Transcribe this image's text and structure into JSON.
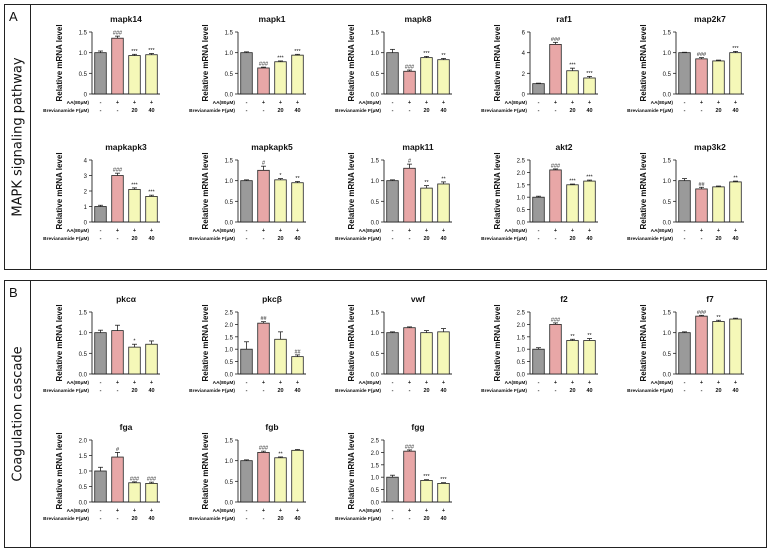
{
  "panels": [
    {
      "letter": "A",
      "title": "MAPK signaling pathway"
    },
    {
      "letter": "B",
      "title": "Coagulation cascade"
    }
  ],
  "colors": {
    "control": "#9a9a9a",
    "model": "#e8a7a7",
    "treated": "#f5f8b8",
    "edge": "#222222"
  },
  "shared_axis": {
    "ylabel": "Relative mRNA level",
    "row_labels": [
      "AA(80μM)",
      "Brevianamide F(μM)"
    ],
    "aa_marks": [
      "-",
      "+",
      "+",
      "+"
    ],
    "dose_marks": [
      "-",
      "-",
      "20",
      "40"
    ]
  },
  "chart_data": [
    {
      "type": "bar",
      "title": "mapk14",
      "ylabel": "Relative mRNA level",
      "categories": [
        "Control",
        "AA",
        "AA+20",
        "AA+40"
      ],
      "values": [
        1.0,
        1.35,
        0.93,
        0.95
      ],
      "errors": [
        0.04,
        0.05,
        0.03,
        0.03
      ],
      "sig": [
        "",
        "###",
        "***",
        "***"
      ],
      "ylim": [
        0,
        1.5
      ],
      "ticks": [
        "0",
        "0.5",
        "1.0",
        "1.5"
      ]
    },
    {
      "type": "bar",
      "title": "mapk1",
      "ylabel": "Relative mRNA level",
      "categories": [
        "Control",
        "AA",
        "AA+20",
        "AA+40"
      ],
      "values": [
        1.0,
        0.63,
        0.78,
        0.94
      ],
      "errors": [
        0.02,
        0.02,
        0.02,
        0.02
      ],
      "sig": [
        "",
        "###",
        "***",
        "***"
      ],
      "ylim": [
        0,
        1.5
      ],
      "ticks": [
        "0.0",
        "0.5",
        "1.0",
        "1.5"
      ]
    },
    {
      "type": "bar",
      "title": "mapk8",
      "ylabel": "Relative mRNA level",
      "categories": [
        "Control",
        "AA",
        "AA+20",
        "AA+40"
      ],
      "values": [
        1.0,
        0.55,
        0.88,
        0.83
      ],
      "errors": [
        0.08,
        0.03,
        0.03,
        0.03
      ],
      "sig": [
        "",
        "###",
        "***",
        "**"
      ],
      "ylim": [
        0,
        1.5
      ],
      "ticks": [
        "0.0",
        "0.5",
        "1.0",
        "1.5"
      ]
    },
    {
      "type": "bar",
      "title": "raf1",
      "ylabel": "Relative mRNA level",
      "categories": [
        "Control",
        "AA",
        "AA+20",
        "AA+40"
      ],
      "values": [
        1.0,
        4.8,
        2.25,
        1.55
      ],
      "errors": [
        0.05,
        0.2,
        0.25,
        0.15
      ],
      "sig": [
        "",
        "###",
        "***",
        "***"
      ],
      "ylim": [
        0,
        6
      ],
      "ticks": [
        "0",
        "2",
        "4",
        "6"
      ]
    },
    {
      "type": "bar",
      "title": "map2k7",
      "ylabel": "Relative mRNA level",
      "categories": [
        "Control",
        "AA",
        "AA+20",
        "AA+40"
      ],
      "values": [
        1.0,
        0.85,
        0.8,
        1.0
      ],
      "errors": [
        0.01,
        0.03,
        0.02,
        0.03
      ],
      "sig": [
        "",
        "###",
        "",
        "***"
      ],
      "ylim": [
        0,
        1.5
      ],
      "ticks": [
        "0.0",
        "0.5",
        "1.0",
        "1.5"
      ]
    },
    {
      "type": "bar",
      "title": "mapkapk3",
      "ylabel": "Relative mRNA level",
      "categories": [
        "Control",
        "AA",
        "AA+20",
        "AA+40"
      ],
      "values": [
        1.0,
        3.0,
        2.1,
        1.65
      ],
      "errors": [
        0.08,
        0.15,
        0.1,
        0.08
      ],
      "sig": [
        "",
        "###",
        "***",
        "***"
      ],
      "ylim": [
        0,
        4
      ],
      "ticks": [
        "0",
        "1",
        "2",
        "3",
        "4"
      ]
    },
    {
      "type": "bar",
      "title": "mapkapk5",
      "ylabel": "Relative mRNA level",
      "categories": [
        "Control",
        "AA",
        "AA+20",
        "AA+40"
      ],
      "values": [
        1.0,
        1.25,
        1.02,
        0.95
      ],
      "errors": [
        0.02,
        0.1,
        0.03,
        0.03
      ],
      "sig": [
        "",
        "#",
        "*",
        "**"
      ],
      "ylim": [
        0,
        1.5
      ],
      "ticks": [
        "0.0",
        "0.5",
        "1.0",
        "1.5"
      ]
    },
    {
      "type": "bar",
      "title": "mapk11",
      "ylabel": "Relative mRNA level",
      "categories": [
        "Control",
        "AA",
        "AA+20",
        "AA+40"
      ],
      "values": [
        1.0,
        1.3,
        0.82,
        0.92
      ],
      "errors": [
        0.02,
        0.1,
        0.06,
        0.05
      ],
      "sig": [
        "",
        "#",
        "**",
        "**"
      ],
      "ylim": [
        0,
        1.5
      ],
      "ticks": [
        "0.0",
        "0.5",
        "1.0",
        "1.5"
      ]
    },
    {
      "type": "bar",
      "title": "akt2",
      "ylabel": "Relative mRNA level",
      "categories": [
        "Control",
        "AA",
        "AA+20",
        "AA+40"
      ],
      "values": [
        1.0,
        2.1,
        1.5,
        1.65
      ],
      "errors": [
        0.04,
        0.04,
        0.03,
        0.04
      ],
      "sig": [
        "",
        "###",
        "***",
        "***"
      ],
      "ylim": [
        0,
        2.5
      ],
      "ticks": [
        "0.0",
        "0.5",
        "1.0",
        "1.5",
        "2.0",
        "2.5"
      ]
    },
    {
      "type": "bar",
      "title": "map3k2",
      "ylabel": "Relative mRNA level",
      "categories": [
        "Control",
        "AA",
        "AA+20",
        "AA+40"
      ],
      "values": [
        1.0,
        0.8,
        0.85,
        0.97
      ],
      "errors": [
        0.05,
        0.04,
        0.02,
        0.02
      ],
      "sig": [
        "",
        "##",
        "",
        "**"
      ],
      "ylim": [
        0,
        1.5
      ],
      "ticks": [
        "0.0",
        "0.5",
        "1.0",
        "1.5"
      ]
    },
    {
      "type": "bar",
      "title": "pkcα",
      "ylabel": "Relative mRNA level",
      "categories": [
        "Control",
        "AA",
        "AA+20",
        "AA+40"
      ],
      "values": [
        1.0,
        1.05,
        0.65,
        0.72
      ],
      "errors": [
        0.06,
        0.13,
        0.07,
        0.08
      ],
      "sig": [
        "",
        "",
        "*",
        ""
      ],
      "ylim": [
        0,
        1.5
      ],
      "ticks": [
        "0.0",
        "0.5",
        "1.0",
        "1.5"
      ]
    },
    {
      "type": "bar",
      "title": "pkcβ",
      "ylabel": "Relative mRNA level",
      "categories": [
        "Control",
        "AA",
        "AA+20",
        "AA+40"
      ],
      "values": [
        1.0,
        2.05,
        1.4,
        0.7
      ],
      "errors": [
        0.3,
        0.06,
        0.3,
        0.07
      ],
      "sig": [
        "",
        "##",
        "",
        "##"
      ],
      "ylim": [
        0,
        2.5
      ],
      "ticks": [
        "0.0",
        "0.5",
        "1.0",
        "1.5",
        "2.0",
        "2.5"
      ]
    },
    {
      "type": "bar",
      "title": "vwf",
      "ylabel": "Relative mRNA level",
      "categories": [
        "Control",
        "AA",
        "AA+20",
        "AA+40"
      ],
      "values": [
        1.0,
        1.12,
        1.0,
        1.02
      ],
      "errors": [
        0.02,
        0.02,
        0.05,
        0.08
      ],
      "sig": [
        "",
        "",
        "",
        ""
      ],
      "ylim": [
        0,
        1.5
      ],
      "ticks": [
        "0.0",
        "0.5",
        "1.0",
        "1.5"
      ]
    },
    {
      "type": "bar",
      "title": "f2",
      "ylabel": "Relative mRNA level",
      "categories": [
        "Control",
        "AA",
        "AA+20",
        "AA+40"
      ],
      "values": [
        1.0,
        2.0,
        1.35,
        1.35
      ],
      "errors": [
        0.06,
        0.06,
        0.05,
        0.08
      ],
      "sig": [
        "",
        "###",
        "**",
        "**"
      ],
      "ylim": [
        0,
        2.5
      ],
      "ticks": [
        "0.0",
        "0.5",
        "1.0",
        "1.5",
        "2.0",
        "2.5"
      ]
    },
    {
      "type": "bar",
      "title": "f7",
      "ylabel": "Relative mRNA level",
      "categories": [
        "Control",
        "AA",
        "AA+20",
        "AA+40"
      ],
      "values": [
        1.0,
        1.4,
        1.27,
        1.33
      ],
      "errors": [
        0.02,
        0.02,
        0.03,
        0.02
      ],
      "sig": [
        "",
        "###",
        "**",
        ""
      ],
      "ylim": [
        0,
        1.5
      ],
      "ticks": [
        "0.0",
        "0.5",
        "1.0",
        "1.5"
      ]
    },
    {
      "type": "bar",
      "title": "fga",
      "ylabel": "Relative mRNA level",
      "categories": [
        "Control",
        "AA",
        "AA+20",
        "AA+40"
      ],
      "values": [
        1.0,
        1.45,
        0.62,
        0.6
      ],
      "errors": [
        0.12,
        0.15,
        0.03,
        0.04
      ],
      "sig": [
        "",
        "#",
        "###",
        "###"
      ],
      "ylim": [
        0,
        2
      ],
      "ticks": [
        "0.0",
        "0.5",
        "1.0",
        "1.5",
        "2.0"
      ]
    },
    {
      "type": "bar",
      "title": "fgb",
      "ylabel": "Relative mRNA level",
      "categories": [
        "Control",
        "AA",
        "AA+20",
        "AA+40"
      ],
      "values": [
        1.0,
        1.2,
        1.07,
        1.25
      ],
      "errors": [
        0.02,
        0.03,
        0.02,
        0.02
      ],
      "sig": [
        "",
        "###",
        "**",
        ""
      ],
      "ylim": [
        0,
        1.5
      ],
      "ticks": [
        "0.0",
        "0.5",
        "1.0",
        "1.5"
      ]
    },
    {
      "type": "bar",
      "title": "fgg",
      "ylabel": "Relative mRNA level",
      "categories": [
        "Control",
        "AA",
        "AA+20",
        "AA+40"
      ],
      "values": [
        1.0,
        2.05,
        0.87,
        0.75
      ],
      "errors": [
        0.08,
        0.05,
        0.03,
        0.03
      ],
      "sig": [
        "",
        "###",
        "***",
        "***"
      ],
      "ylim": [
        0,
        2.5
      ],
      "ticks": [
        "0.0",
        "0.5",
        "1.0",
        "1.5",
        "2.0",
        "2.5"
      ]
    }
  ]
}
